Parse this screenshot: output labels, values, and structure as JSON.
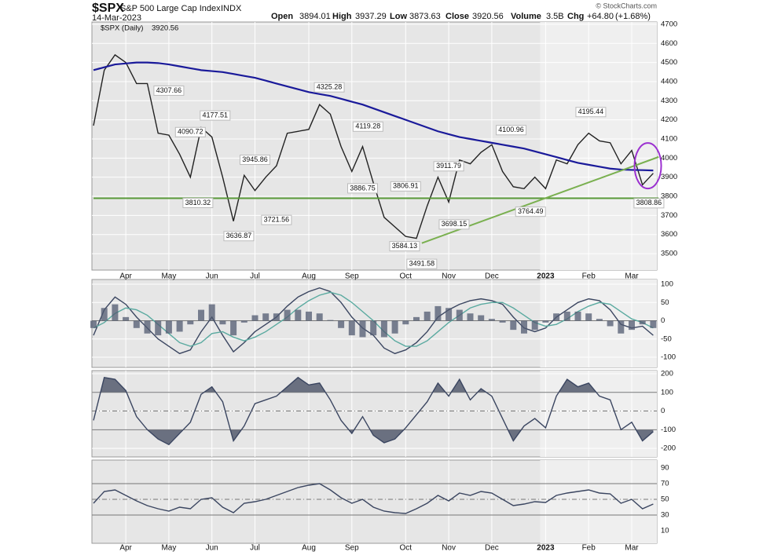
{
  "header": {
    "symbol": "$SPX",
    "name": "S&P 500 Large Cap Index",
    "exchange": "INDX",
    "date": "14-Mar-2023",
    "open_label": "Open",
    "open": "3894.01",
    "high_label": "High",
    "high": "3937.29",
    "low_label": "Low",
    "low": "3873.63",
    "close_label": "Close",
    "close": "3920.56",
    "volume_label": "Volume",
    "volume": "3.5B",
    "chg_label": "Chg",
    "chg": "+64.80",
    "chg_pct": "(+1.68%)",
    "credit": "© StockCharts.com"
  },
  "chart_data": [
    {
      "type": "line",
      "categories": [
        null,
        null,
        null,
        "Apr",
        null,
        null,
        null,
        "May",
        null,
        null,
        null,
        "Jun",
        null,
        null,
        null,
        "Jul",
        null,
        null,
        null,
        null,
        "Aug",
        null,
        null,
        null,
        "Sep",
        null,
        null,
        null,
        null,
        "Oct",
        null,
        null,
        null,
        "Nov",
        null,
        null,
        null,
        "Dec",
        null,
        null,
        null,
        null,
        "2023",
        null,
        null,
        null,
        "Feb",
        null,
        null,
        null,
        "Mar",
        null,
        null
      ],
      "series": [
        {
          "name": "$SPX (Daily)",
          "color": "#222222",
          "values": [
            4170,
            4460,
            4540,
            4500,
            4390,
            4390,
            4130,
            4120,
            4020,
            3900,
            4160,
            4110,
            3900,
            3670,
            3910,
            3830,
            3900,
            3960,
            4130,
            4140,
            4150,
            4280,
            4230,
            4060,
            3930,
            4060,
            3870,
            3690,
            3640,
            3590,
            3580,
            3750,
            3900,
            3770,
            3990,
            3970,
            4030,
            4070,
            3930,
            3850,
            3840,
            3900,
            3840,
            3990,
            3970,
            4070,
            4130,
            4090,
            4080,
            3970,
            4040,
            3860,
            3920.56
          ]
        },
        {
          "color": "#1a1a9a",
          "values": [
            4460,
            4475,
            4490,
            4495,
            4500,
            4500,
            4497,
            4490,
            4480,
            4470,
            4460,
            4455,
            4450,
            4440,
            4430,
            4420,
            4405,
            4390,
            4375,
            4360,
            4345,
            4335,
            4325,
            4310,
            4295,
            4280,
            4260,
            4240,
            4220,
            4200,
            4180,
            4160,
            4140,
            4125,
            4110,
            4100,
            4090,
            4080,
            4070,
            4060,
            4050,
            4035,
            4020,
            4005,
            3990,
            3975,
            3965,
            3955,
            3945,
            3940,
            3938,
            3937,
            3935
          ]
        }
      ],
      "ylim": [
        3414,
        4712
      ],
      "yticks": [
        3500,
        3600,
        3700,
        3800,
        3900,
        4000,
        4100,
        4200,
        4300,
        4400,
        4500,
        4600,
        4700
      ],
      "grid": true,
      "trendlines": [
        {
          "color": "#5a9a3a",
          "from": [
            0,
            3790
          ],
          "to": [
            52.5,
            3790
          ]
        },
        {
          "color": "#7ab050",
          "from": [
            30.5,
            3555
          ],
          "to": [
            52.5,
            4006
          ]
        }
      ],
      "annotations": [
        {
          "index": 7,
          "value": 4307.66,
          "position": "above"
        },
        {
          "index": 9,
          "value": 4090.72,
          "position": "above"
        },
        {
          "index": 11.3,
          "value": 4177.51,
          "position": "above"
        },
        {
          "index": 9.7,
          "value": 3810.32,
          "position": "below"
        },
        {
          "index": 13.5,
          "value": 3636.87,
          "position": "below"
        },
        {
          "index": 15,
          "value": 3945.86,
          "position": "above"
        },
        {
          "index": 17,
          "value": 3721.56,
          "position": "below"
        },
        {
          "index": 21.9,
          "value": 4325.28,
          "position": "above"
        },
        {
          "index": 25,
          "value": 3886.75,
          "position": "below"
        },
        {
          "index": 25.5,
          "value": 4119.28,
          "position": "above"
        },
        {
          "index": 29,
          "value": 3806.91,
          "position": "above"
        },
        {
          "index": 28.9,
          "value": 3584.13,
          "position": "below"
        },
        {
          "index": 30.5,
          "value": 3491.58,
          "position": "below"
        },
        {
          "index": 33,
          "value": 3911.79,
          "position": "above"
        },
        {
          "index": 33.5,
          "value": 3698.15,
          "position": "below"
        },
        {
          "index": 38.8,
          "value": 4100.96,
          "position": "above"
        },
        {
          "index": 40.6,
          "value": 3764.49,
          "position": "below"
        },
        {
          "index": 46.2,
          "value": 4195.44,
          "position": "above"
        },
        {
          "index": 51.6,
          "value": 3808.86,
          "position": "below"
        }
      ],
      "highlight": {
        "index": 51.5,
        "value": 3960,
        "color": "#9b30d0"
      }
    },
    {
      "type": "line",
      "series": [
        {
          "color": "#3a4560",
          "values": [
            -40,
            30,
            65,
            45,
            10,
            -20,
            -50,
            -70,
            -90,
            -80,
            -30,
            10,
            -40,
            -85,
            -60,
            -30,
            -10,
            10,
            40,
            65,
            80,
            90,
            80,
            50,
            10,
            -20,
            -40,
            -75,
            -90,
            -80,
            -60,
            -30,
            10,
            30,
            45,
            55,
            60,
            55,
            45,
            10,
            -20,
            -30,
            -20,
            10,
            30,
            50,
            60,
            55,
            30,
            -10,
            -20,
            -15,
            -40
          ]
        },
        {
          "color": "#5aaaa0",
          "values": [
            -20,
            -5,
            20,
            35,
            30,
            15,
            -10,
            -35,
            -60,
            -70,
            -60,
            -35,
            -30,
            -45,
            -55,
            -45,
            -30,
            -10,
            10,
            35,
            55,
            70,
            78,
            70,
            50,
            25,
            0,
            -30,
            -55,
            -70,
            -70,
            -55,
            -30,
            -5,
            15,
            35,
            45,
            50,
            50,
            35,
            15,
            -5,
            -15,
            -10,
            5,
            25,
            40,
            50,
            45,
            25,
            5,
            -5,
            -20
          ]
        },
        {
          "color": "#505a70",
          "style": "histogram",
          "values": [
            -20,
            35,
            45,
            10,
            -20,
            -35,
            -40,
            -35,
            -30,
            -10,
            30,
            45,
            -10,
            -40,
            -5,
            15,
            20,
            20,
            30,
            30,
            25,
            20,
            2,
            -20,
            -40,
            -45,
            -40,
            -45,
            -35,
            -10,
            10,
            25,
            40,
            35,
            30,
            20,
            15,
            5,
            -5,
            -25,
            -35,
            -25,
            -5,
            20,
            25,
            25,
            20,
            5,
            -15,
            -35,
            -25,
            -10,
            -20
          ]
        }
      ],
      "ylim": [
        -128,
        113
      ],
      "yticks": [
        -100,
        -50,
        0,
        50,
        100
      ],
      "grid": true,
      "ref_lines": [
        {
          "value": 0,
          "style": "solid"
        }
      ]
    },
    {
      "type": "line",
      "series": [
        {
          "color": "#3a4560",
          "values": [
            -50,
            180,
            170,
            110,
            -30,
            -100,
            -150,
            -180,
            -120,
            -60,
            90,
            130,
            50,
            -160,
            -80,
            40,
            60,
            80,
            130,
            180,
            140,
            150,
            60,
            -50,
            -120,
            -30,
            -130,
            -170,
            -150,
            -90,
            -20,
            50,
            150,
            80,
            170,
            60,
            120,
            80,
            -40,
            -160,
            -80,
            -40,
            -90,
            80,
            170,
            130,
            150,
            80,
            60,
            -100,
            -60,
            -160,
            -110
          ]
        }
      ],
      "ylim": [
        -246,
        217
      ],
      "yticks": [
        -200,
        -100,
        0,
        100,
        200
      ],
      "grid": true,
      "ref_lines": [
        {
          "value": 100,
          "style": "solid"
        },
        {
          "value": 0,
          "style": "dashdot"
        },
        {
          "value": -100,
          "style": "solid"
        }
      ],
      "shade_beyond": [
        100,
        -100
      ],
      "shade_color": "#6a7080"
    },
    {
      "type": "line",
      "series": [
        {
          "color": "#3a4560",
          "values": [
            45,
            60,
            62,
            55,
            48,
            42,
            38,
            35,
            40,
            38,
            50,
            52,
            40,
            33,
            45,
            47,
            50,
            55,
            60,
            65,
            68,
            70,
            62,
            52,
            45,
            50,
            40,
            35,
            33,
            32,
            38,
            45,
            55,
            48,
            58,
            55,
            60,
            58,
            50,
            42,
            44,
            47,
            46,
            55,
            58,
            60,
            62,
            58,
            57,
            45,
            50,
            38,
            44
          ]
        }
      ],
      "ylim": [
        -6,
        100
      ],
      "yticks": [
        10,
        30,
        50,
        70,
        90
      ],
      "grid": false,
      "ref_lines": [
        {
          "value": 70,
          "style": "solid"
        },
        {
          "value": 50,
          "style": "dashdot"
        },
        {
          "value": 30,
          "style": "solid"
        }
      ]
    }
  ]
}
